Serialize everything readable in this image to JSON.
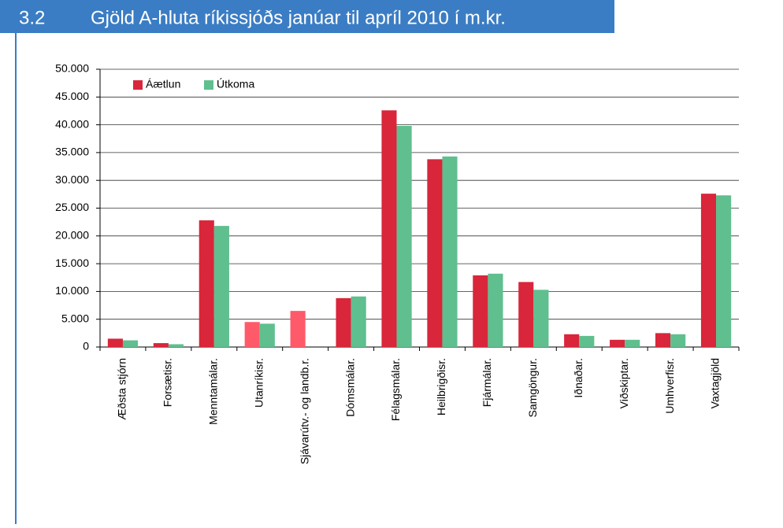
{
  "section": "3.2",
  "chart_data": {
    "type": "bar",
    "title": "Gjöld A-hluta ríkissjóðs janúar til apríl 2010 í m.kr.",
    "categories": [
      "Æðsta stjórn",
      "Forsætisr.",
      "Menntamálar.",
      "Utanríkisr.",
      "Sjávarútv.- og landb.r.",
      "Dómsmálar.",
      "Félagsmálar.",
      "Heilbrigðisr.",
      "Fjármálar.",
      "Samgöngur.",
      "Iðnaðar.",
      "Viðskiptar.",
      "Umhverfisr.",
      "Vaxtagjöld"
    ],
    "series": [
      {
        "name": "Áætlun",
        "color": "#d9263a",
        "colors": [
          "#d9263a",
          "#d9263a",
          "#d9263a",
          "#ff5a6a",
          "#ff5a6a",
          "#d9263a",
          "#d9263a",
          "#d9263a",
          "#d9263a",
          "#d9263a",
          "#d9263a",
          "#d9263a",
          "#d9263a",
          "#d9263a"
        ],
        "values": [
          1500,
          700,
          22800,
          4500,
          6500,
          8800,
          42600,
          33800,
          12900,
          11700,
          2300,
          1300,
          2500,
          27600
        ]
      },
      {
        "name": "Útkoma",
        "color": "#5fbf8f",
        "values": [
          1200,
          500,
          21800,
          4200,
          null,
          9100,
          39800,
          34300,
          13200,
          10300,
          2000,
          1300,
          2300,
          27300
        ]
      }
    ],
    "ylim": [
      0,
      50000
    ],
    "yticks": [
      0,
      {
        "value": 5000,
        "label": "5.000"
      },
      {
        "value": 10000,
        "label": "10.000"
      },
      {
        "value": 15000,
        "label": "15.000"
      },
      {
        "value": 20000,
        "label": "20.000"
      },
      {
        "value": 25000,
        "label": "25.000"
      },
      {
        "value": 30000,
        "label": "30.000"
      },
      {
        "value": 35000,
        "label": "35.000"
      },
      {
        "value": 40000,
        "label": "40.000"
      },
      {
        "value": 45000,
        "label": "45.000"
      },
      {
        "value": 50000,
        "label": "50.000"
      }
    ],
    "grid": true,
    "legend": "top-left"
  }
}
